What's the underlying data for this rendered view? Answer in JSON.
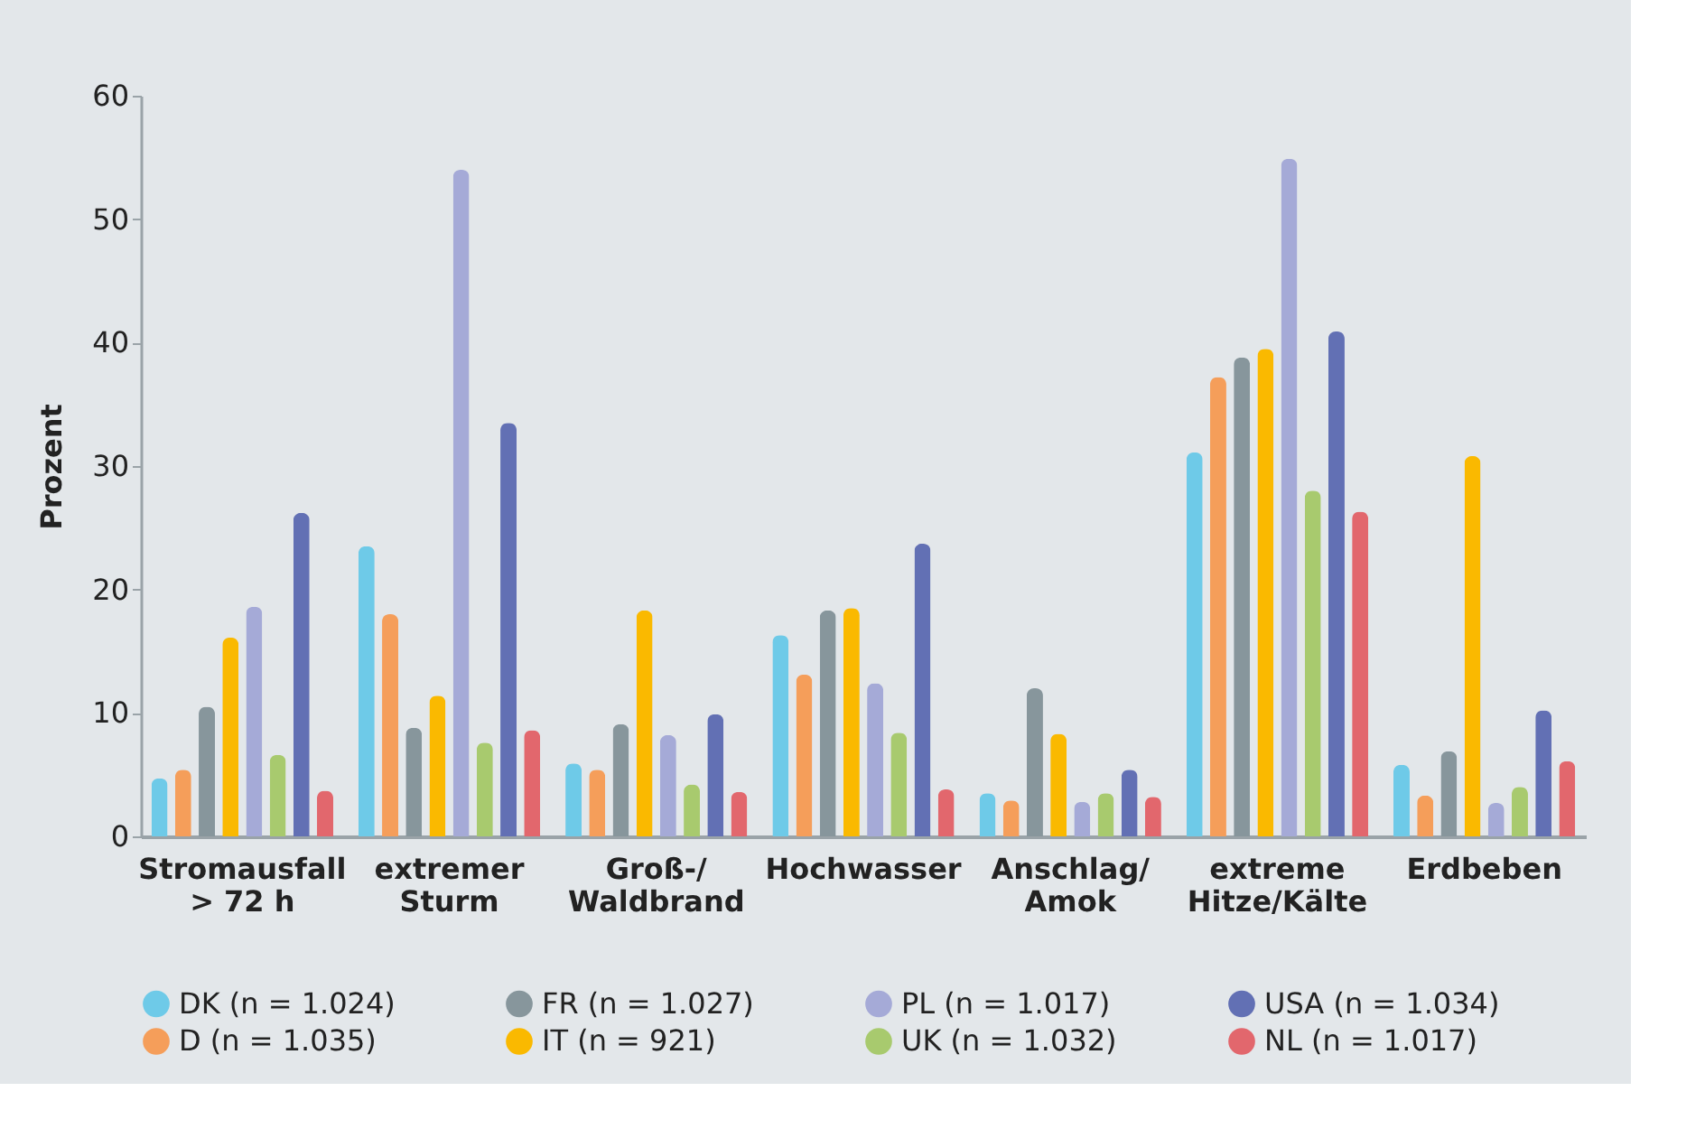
{
  "chart_data": {
    "type": "bar",
    "ylabel": "Prozent",
    "categories": [
      "Stromausfall\n> 72 h",
      "extremer\nSturm",
      "Groß-/\nWaldbrand",
      "Hochwasser",
      "Anschlag/\nAmok",
      "extreme\nHitze/Kälte",
      "Erdbeben"
    ],
    "ylim": [
      0,
      60
    ],
    "yticks": [
      0,
      10,
      20,
      30,
      40,
      50,
      60
    ],
    "grid": false,
    "legend": "bottom",
    "series": [
      {
        "name": "DK (n = 1.024)",
        "color": "#6ecae8",
        "values": [
          4.7,
          23.5,
          5.9,
          16.3,
          3.5,
          31.1,
          5.8
        ]
      },
      {
        "name": "D (n = 1.035)",
        "color": "#f59e5a",
        "values": [
          5.4,
          18.0,
          5.4,
          13.1,
          2.9,
          37.2,
          3.3
        ]
      },
      {
        "name": "FR (n = 1.027)",
        "color": "#87969c",
        "values": [
          10.5,
          8.8,
          9.1,
          18.3,
          12.0,
          38.8,
          6.9
        ]
      },
      {
        "name": "IT (n = 921)",
        "color": "#fab900",
        "values": [
          16.1,
          11.4,
          18.3,
          18.5,
          8.3,
          39.5,
          30.8
        ]
      },
      {
        "name": "PL (n = 1.017)",
        "color": "#a5aad7",
        "values": [
          18.6,
          54.0,
          8.2,
          12.4,
          2.8,
          54.9,
          2.7
        ]
      },
      {
        "name": "UK (n = 1.032)",
        "color": "#a8ca6e",
        "values": [
          6.6,
          7.6,
          4.2,
          8.4,
          3.5,
          28.0,
          4.0
        ]
      },
      {
        "name": "USA (n = 1.034)",
        "color": "#6270b4",
        "values": [
          26.2,
          33.5,
          9.9,
          23.7,
          5.4,
          40.9,
          10.2
        ]
      },
      {
        "name": "NL (n = 1.017)",
        "color": "#e2676d",
        "values": [
          3.7,
          8.6,
          3.6,
          3.8,
          3.2,
          26.3,
          6.1
        ]
      }
    ]
  }
}
